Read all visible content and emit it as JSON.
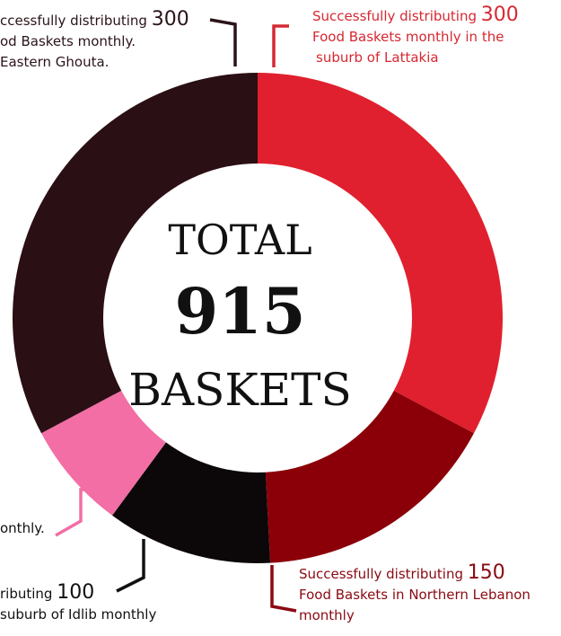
{
  "chart_data": {
    "type": "pie",
    "donut": true,
    "center": {
      "line1": "TOTAL",
      "line2": "915",
      "line3": "BASKETS"
    },
    "slices": [
      {
        "value": 300,
        "color": "#e0202e",
        "label_line1": "Successfully distributing",
        "label_value": "300",
        "label_line2": "Food Baskets monthly in the",
        "label_line3": "suburb of Lattakia"
      },
      {
        "value": 150,
        "color": "#8b0008",
        "label_line1": "Successfully distributing",
        "label_value": "150",
        "label_line2": "Food Baskets in Northern Lebanon",
        "label_line3": "monthly"
      },
      {
        "value": 100,
        "color": "#0c0708",
        "label_line1": "ributing",
        "label_value": "100",
        "label_line2": "suburb of Idlib monthly",
        "label_line3": ""
      },
      {
        "value": 65,
        "color": "#f26ea5",
        "label_line1": "onthly.",
        "label_value": "",
        "label_line2": "",
        "label_line3": ""
      },
      {
        "value": 300,
        "color": "#2a0f14",
        "label_line1": "ccessfully distributing",
        "label_value": "300",
        "label_line2": "od Baskets monthly.",
        "label_line3": "Eastern Ghouta."
      }
    ]
  }
}
